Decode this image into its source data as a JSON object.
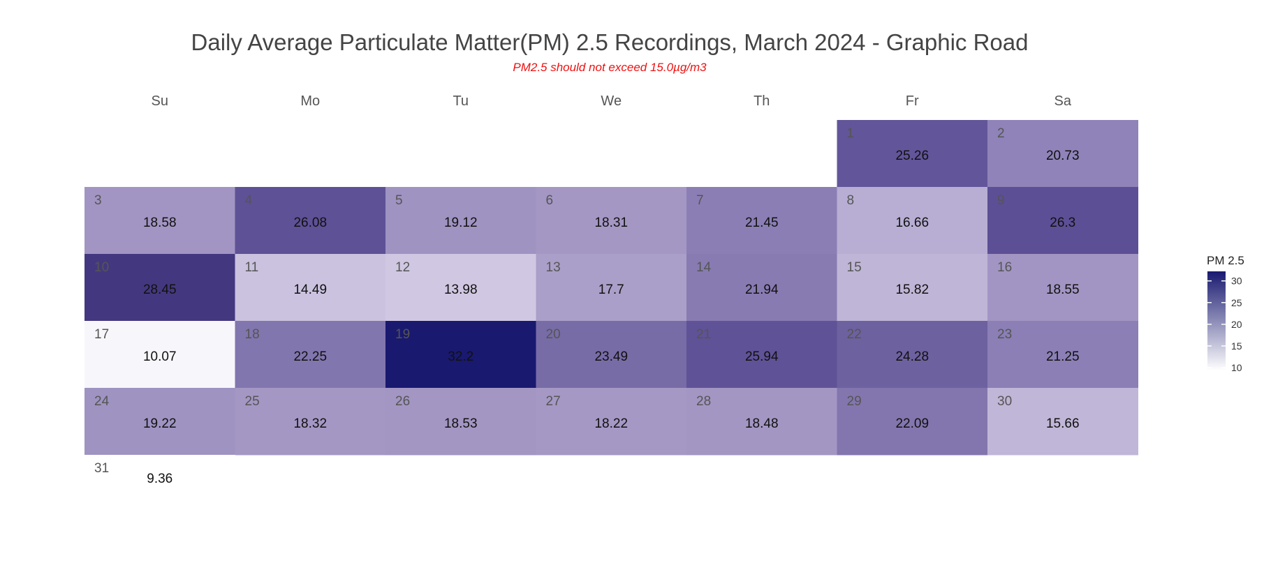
{
  "chart_data": {
    "type": "heatmap",
    "title": "Daily Average Particulate Matter(PM) 2.5 Recordings, March 2024 - Graphic Road",
    "subtitle": "PM2.5 should not exceed 15.0µg/m3",
    "weekdays": [
      "Su",
      "Mo",
      "Tu",
      "We",
      "Th",
      "Fr",
      "Sa"
    ],
    "first_weekday_index": 5,
    "days": [
      {
        "day": "1",
        "value": 25.26
      },
      {
        "day": "2",
        "value": 20.73
      },
      {
        "day": "3",
        "value": 18.58
      },
      {
        "day": "4",
        "value": 26.08
      },
      {
        "day": "5",
        "value": 19.12
      },
      {
        "day": "6",
        "value": 18.31
      },
      {
        "day": "7",
        "value": 21.45
      },
      {
        "day": "8",
        "value": 16.66
      },
      {
        "day": "9",
        "value": 26.3
      },
      {
        "day": "10",
        "value": 28.45
      },
      {
        "day": "11",
        "value": 14.49
      },
      {
        "day": "12",
        "value": 13.98
      },
      {
        "day": "13",
        "value": 17.7
      },
      {
        "day": "14",
        "value": 21.94
      },
      {
        "day": "15",
        "value": 15.82
      },
      {
        "day": "16",
        "value": 18.55
      },
      {
        "day": "17",
        "value": 10.07
      },
      {
        "day": "18",
        "value": 22.25
      },
      {
        "day": "19",
        "value": 32.2
      },
      {
        "day": "20",
        "value": 23.49
      },
      {
        "day": "21",
        "value": 25.94
      },
      {
        "day": "22",
        "value": 24.28
      },
      {
        "day": "23",
        "value": 21.25
      },
      {
        "day": "24",
        "value": 19.22
      },
      {
        "day": "25",
        "value": 18.32
      },
      {
        "day": "26",
        "value": 18.53
      },
      {
        "day": "27",
        "value": 18.22
      },
      {
        "day": "28",
        "value": 18.48
      },
      {
        "day": "29",
        "value": 22.09
      },
      {
        "day": "30",
        "value": 15.66
      },
      {
        "day": "31",
        "value": 9.36
      }
    ],
    "legend": {
      "title": "PM 2.5",
      "ticks": [
        10,
        15,
        20,
        25,
        30
      ],
      "range": [
        9.36,
        32.2
      ],
      "placement": "right"
    },
    "color_scale": {
      "low": "#f7f7fb",
      "high": "#191970"
    },
    "cell_colors": {
      "1": "#62559a",
      "2": "#8f83b9",
      "3": "#a295c3",
      "4": "#5e5196",
      "5": "#9f93c2",
      "6": "#a497c4",
      "7": "#8b7eb5",
      "8": "#b8aed3",
      "9": "#5d4f95",
      "10": "#43387f",
      "11": "#cac2df",
      "12": "#d0c8e2",
      "13": "#aa9fc8",
      "14": "#887bb2",
      "15": "#bfb5d6",
      "16": "#a295c3",
      "17": "#f7f7fb",
      "18": "#8276ae",
      "20": "#786ca7",
      "21": "#5f5296",
      "22": "#6e619f",
      "23": "#8b7fb5",
      "24": "#9f93c2",
      "25": "#a497c4",
      "26": "#a396c3",
      "27": "#a598c5",
      "28": "#a396c3",
      "29": "#8376ae",
      "30": "#c0b6d7"
    }
  }
}
